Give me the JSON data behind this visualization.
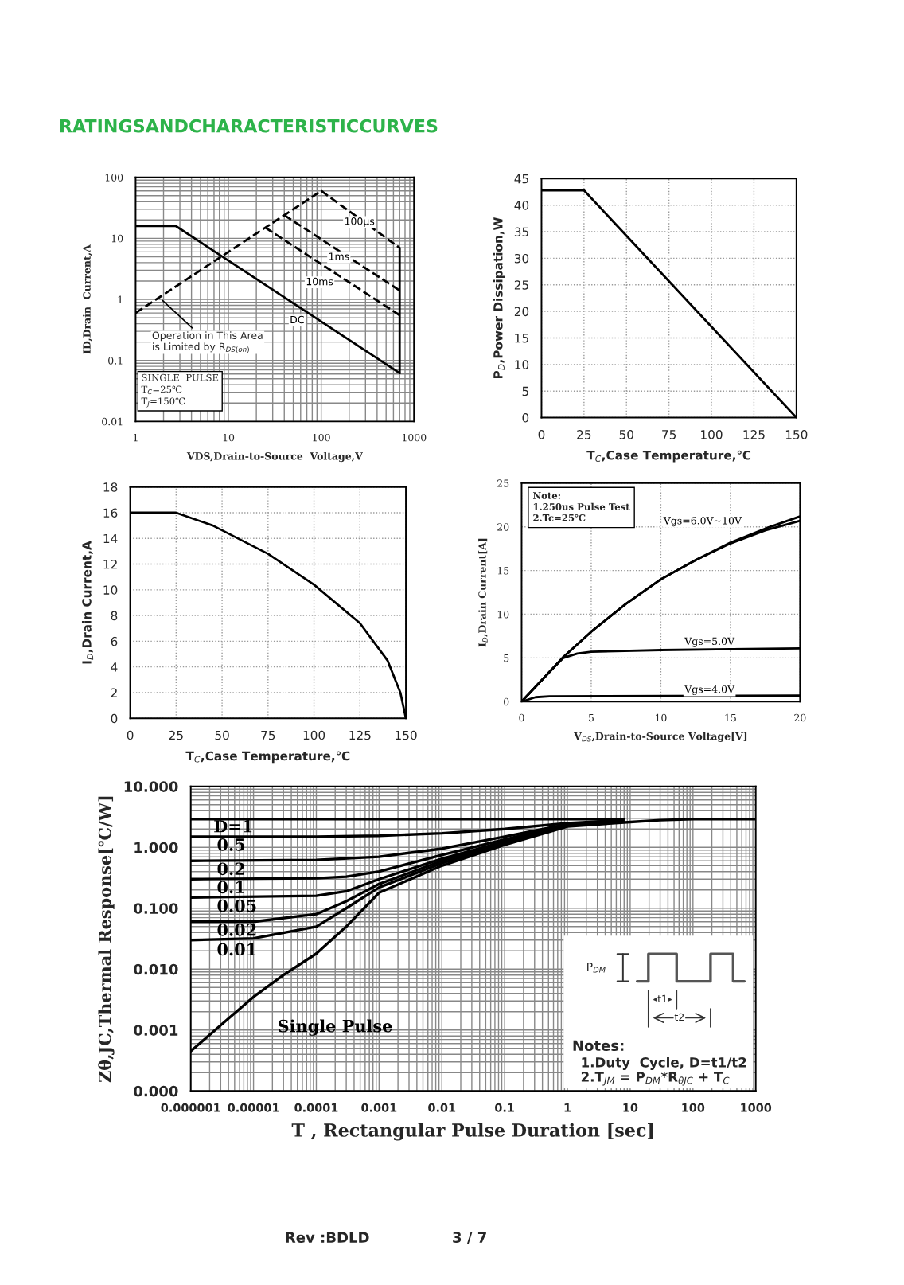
{
  "chart_data": [
    {
      "type": "line",
      "log": "xy",
      "xlabel": "VDS,Drain-to-Source  Voltage,V",
      "ylabel": "ID,Drain  Current,A",
      "xlim": [
        1,
        1000
      ],
      "ylim": [
        0.01,
        100
      ],
      "xticks": [
        1,
        10,
        100,
        1000
      ],
      "yticks": [
        0.01,
        0.1,
        1,
        10,
        100
      ],
      "grid": true,
      "legend": false,
      "marker": "none",
      "annotations": [
        "RATINGSANDCHARACTERISTICCURVES",
        {
          "text": "Operation in This Area\nis Limited by R$_{DS(on)}$",
          "x": 1.8,
          "y": 1.08
        },
        "SINGLE  PULSE\nT$_{C}$=25℃\nT$_{J}$=150℃"
      ],
      "series": [
        {
          "name": "DC",
          "color": "#000000",
          "line_style": "solid",
          "x": [
            1,
            2.7,
            700
          ],
          "values": [
            16,
            16,
            0.062
          ]
        },
        {
          "name": "100µs",
          "color": "#000000",
          "line_style": "dashed",
          "x": [
            100,
            700
          ],
          "values": [
            60,
            7
          ]
        },
        {
          "name": "1ms",
          "color": "#000000",
          "line_style": "dashed",
          "x": [
            40,
            700
          ],
          "values": [
            24,
            1.4
          ]
        },
        {
          "name": "10ms",
          "color": "#000000",
          "line_style": "dashed",
          "x": [
            25,
            700
          ],
          "values": [
            15,
            0.55
          ]
        },
        {
          "color": "#000000",
          "line_style": "dashed",
          "x": [
            1,
            100
          ],
          "values": [
            0.6,
            60
          ]
        },
        {
          "color": "#000000",
          "line_style": "solid",
          "x": [
            700,
            700
          ],
          "values": [
            0.062,
            7
          ]
        }
      ]
    },
    {
      "type": "line",
      "xlabel": "T$_{C}$,Case Temperature,℃",
      "ylabel": "P$_{D}$,Power Dissipation,W",
      "xlim": [
        0,
        150
      ],
      "ylim": [
        0,
        45
      ],
      "xticks": [
        0,
        25,
        50,
        75,
        100,
        125,
        150
      ],
      "yticks": [
        0,
        5,
        10,
        15,
        20,
        25,
        30,
        35,
        40,
        45
      ],
      "grid": true,
      "legend": false,
      "marker": "none",
      "series": [
        {
          "color": "#000000",
          "line_style": "solid",
          "x": [
            0,
            25,
            150
          ],
          "values": [
            42.8,
            42.8,
            0
          ]
        }
      ]
    },
    {
      "type": "line",
      "xlabel": "T$_{C}$,Case Temperature,℃",
      "ylabel": "I$_{D}$,Drain Current,A",
      "xlim": [
        0,
        150
      ],
      "ylim": [
        0,
        18
      ],
      "xticks": [
        0,
        25,
        50,
        75,
        100,
        125,
        150
      ],
      "yticks": [
        0,
        2,
        4,
        6,
        8,
        10,
        12,
        14,
        16,
        18
      ],
      "grid": true,
      "legend": false,
      "marker": "none",
      "series": [
        {
          "color": "#000000",
          "line_style": "solid",
          "x": [
            0,
            25,
            45,
            75,
            100,
            125,
            140,
            147,
            150
          ],
          "values": [
            16,
            16,
            15,
            12.8,
            10.4,
            7.4,
            4.5,
            2,
            0
          ]
        }
      ]
    },
    {
      "type": "line",
      "xlabel": "V$_{DS}$,Drain-to-Source Voltage[V]",
      "ylabel": "I$_{D}$,Drain Current[A]",
      "xlim": [
        0,
        20
      ],
      "ylim": [
        0,
        25
      ],
      "xticks": [
        0,
        5,
        10,
        15,
        20
      ],
      "yticks": [
        0,
        5,
        10,
        15,
        20,
        25
      ],
      "grid": true,
      "legend": false,
      "marker": "none",
      "annotations": [
        "Note:\n1.250us Pulse Test\n2.Tc=25℃"
      ],
      "series": [
        {
          "name": "Vgs=6.0V~10V",
          "color": "#000000",
          "line_style": "solid",
          "x": [
            0,
            2,
            3,
            5,
            7.5,
            10,
            12.5,
            15,
            17.5,
            20
          ],
          "values": [
            0,
            3.4,
            5.1,
            8,
            11.2,
            14,
            16.2,
            18.2,
            19.8,
            21.2
          ]
        },
        {
          "color": "#000000",
          "line_style": "solid",
          "x": [
            0,
            2,
            3,
            5,
            7.5,
            10,
            12.5,
            15,
            17.5,
            20
          ],
          "values": [
            0,
            3.4,
            5.1,
            8,
            11.2,
            14,
            16.2,
            18.1,
            19.6,
            20.7
          ]
        },
        {
          "name": "Vgs=5.0V",
          "color": "#000000",
          "line_style": "solid",
          "x": [
            0,
            2,
            3,
            4,
            5,
            10,
            15,
            20
          ],
          "values": [
            0,
            3.4,
            5,
            5.5,
            5.7,
            5.9,
            6,
            6.1
          ]
        },
        {
          "name": "Vgs=4.0V",
          "color": "#000000",
          "line_style": "solid",
          "x": [
            0,
            1,
            2,
            20
          ],
          "values": [
            0,
            0.5,
            0.6,
            0.7
          ]
        }
      ]
    },
    {
      "type": "line",
      "log": "xy",
      "xlabel": "T , Rectangular Pulse Duration [sec]",
      "ylabel": "Zθ,JC,Thermal Response[℃/W]",
      "xlim": [
        1e-06,
        1000
      ],
      "ylim": [
        0.0001,
        10
      ],
      "xticks": [
        {
          "value": 1e-06,
          "label": "0.000001"
        },
        {
          "value": 1e-05,
          "label": "0.00001"
        },
        {
          "value": 0.0001,
          "label": "0.0001"
        },
        {
          "value": 0.001,
          "label": "0.001"
        },
        {
          "value": 0.01,
          "label": "0.01"
        },
        {
          "value": 0.1,
          "label": "0.1"
        },
        1,
        10,
        100,
        1000
      ],
      "yticks": [
        {
          "value": 0.0001,
          "label": "0.000"
        },
        {
          "value": 0.001,
          "label": "0.001"
        },
        {
          "value": 0.01,
          "label": "0.010"
        },
        {
          "value": 0.1,
          "label": "0.100"
        },
        {
          "value": 1,
          "label": "1.000"
        },
        {
          "value": 10,
          "label": "10.000"
        }
      ],
      "grid": true,
      "legend": false,
      "marker": "none",
      "annotations": [
        "P$_{DM}$",
        "t1",
        "t2",
        "Notes:",
        "1.Duty  Cycle, D=t1/t2",
        "2.T$_{JM}$ = P$_{DM}$*R$_{θJC}$ + T$_{C}$",
        "Rev :BDLD",
        "3 / 7"
      ],
      "series": [
        {
          "name": "D=1",
          "color": "#000000",
          "line_style": "solid",
          "x": [
            1e-06,
            8
          ],
          "values": [
            2.9,
            2.9
          ]
        },
        {
          "name": "0.5",
          "color": "#000000",
          "line_style": "solid",
          "x": [
            1e-06,
            0.0001,
            0.001,
            0.01,
            0.1,
            1,
            8
          ],
          "values": [
            1.5,
            1.5,
            1.55,
            1.7,
            2.0,
            2.5,
            2.8
          ]
        },
        {
          "name": "0.2",
          "color": "#000000",
          "line_style": "solid",
          "x": [
            1e-06,
            0.0001,
            0.001,
            0.01,
            0.1,
            1,
            8
          ],
          "values": [
            0.6,
            0.62,
            0.7,
            0.95,
            1.5,
            2.4,
            2.8
          ]
        },
        {
          "name": "0.1",
          "color": "#000000",
          "line_style": "solid",
          "x": [
            1e-06,
            0.0001,
            0.0003,
            0.001,
            0.01,
            0.1,
            1,
            8
          ],
          "values": [
            0.3,
            0.31,
            0.33,
            0.4,
            0.75,
            1.35,
            2.35,
            2.8
          ]
        },
        {
          "name": "0.05",
          "color": "#000000",
          "line_style": "solid",
          "x": [
            1e-06,
            0.0001,
            0.0003,
            0.001,
            0.01,
            0.1,
            1,
            8
          ],
          "values": [
            0.15,
            0.16,
            0.19,
            0.3,
            0.65,
            1.25,
            2.3,
            2.8
          ]
        },
        {
          "name": "0.02",
          "color": "#000000",
          "line_style": "solid",
          "x": [
            1e-06,
            1e-05,
            0.0001,
            0.0003,
            0.001,
            0.01,
            0.1,
            1,
            8
          ],
          "values": [
            0.06,
            0.06,
            0.08,
            0.13,
            0.25,
            0.6,
            1.2,
            2.3,
            2.8
          ]
        },
        {
          "name": "0.01",
          "color": "#000000",
          "line_style": "solid",
          "x": [
            1e-06,
            1e-05,
            0.0001,
            0.0003,
            0.001,
            0.01,
            0.1,
            1,
            8
          ],
          "values": [
            0.03,
            0.032,
            0.05,
            0.1,
            0.22,
            0.55,
            1.15,
            2.25,
            2.8
          ]
        },
        {
          "name": "Single Pulse",
          "color": "#000000",
          "line_style": "solid",
          "x": [
            1e-06,
            3e-06,
            1e-05,
            3e-05,
            0.0001,
            0.0003,
            0.001,
            0.01,
            0.1,
            1,
            10,
            30,
            100,
            1000
          ],
          "values": [
            0.00045,
            0.0012,
            0.0035,
            0.008,
            0.018,
            0.05,
            0.18,
            0.5,
            1.1,
            2.2,
            2.6,
            2.8,
            2.9,
            2.9
          ]
        }
      ]
    }
  ]
}
